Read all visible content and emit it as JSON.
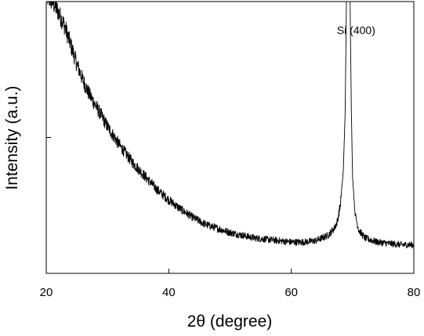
{
  "chart_data": {
    "type": "line",
    "xlabel": "2θ (degree)",
    "ylabel": "Intensity (a.u.)",
    "xlim": [
      20,
      80
    ],
    "ylim": [
      0,
      1
    ],
    "xticks": [
      20,
      40,
      60,
      80
    ],
    "xtick_labels": [
      "20",
      "40",
      "60",
      "80"
    ],
    "yticks": [
      0.5,
      1.0
    ],
    "y_tick_labels_shown": false,
    "grid": false,
    "legend": "none",
    "series_color": "#000000",
    "annotations": [
      {
        "text": "Si (400)",
        "x": 69.3,
        "y": 0.88
      }
    ],
    "series": [
      {
        "x": [
          20,
          21,
          22,
          23,
          24,
          25,
          26,
          27,
          28,
          29,
          30,
          32,
          34,
          36,
          38,
          40,
          42,
          44,
          46,
          48,
          50,
          52,
          54,
          56,
          58,
          60,
          62,
          64,
          65,
          66,
          67,
          67.5,
          68,
          68.5,
          68.8,
          69.0,
          69.2,
          69.4,
          69.6,
          69.8,
          70.0,
          70.4,
          71,
          72,
          74,
          76,
          78,
          80
        ],
        "y": [
          1.02,
          1.0,
          0.96,
          0.91,
          0.84,
          0.77,
          0.71,
          0.66,
          0.62,
          0.58,
          0.54,
          0.47,
          0.41,
          0.36,
          0.31,
          0.27,
          0.235,
          0.205,
          0.18,
          0.165,
          0.15,
          0.14,
          0.13,
          0.125,
          0.12,
          0.115,
          0.115,
          0.12,
          0.13,
          0.14,
          0.165,
          0.19,
          0.25,
          0.38,
          0.6,
          1.0,
          1.5,
          1.5,
          1.0,
          0.6,
          0.36,
          0.22,
          0.16,
          0.13,
          0.115,
          0.11,
          0.105,
          0.105
        ]
      }
    ]
  }
}
